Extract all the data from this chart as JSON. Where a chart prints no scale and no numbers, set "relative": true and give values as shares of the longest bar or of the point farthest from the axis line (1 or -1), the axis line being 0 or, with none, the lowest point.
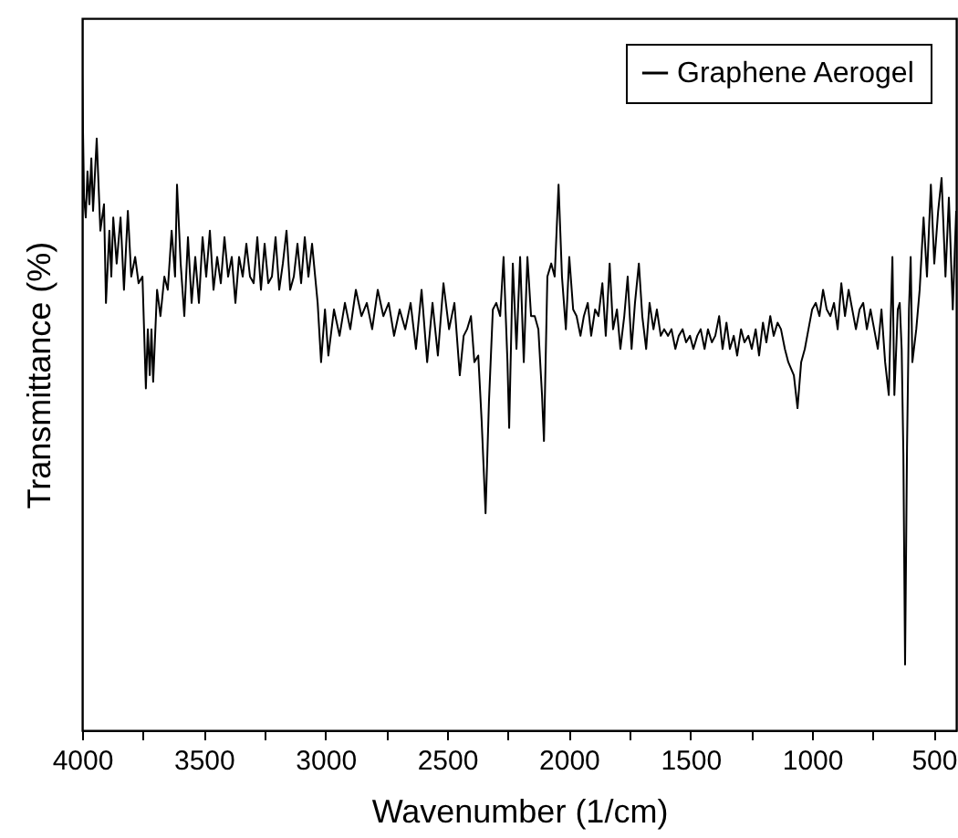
{
  "chart_data": {
    "type": "line",
    "xlabel": "Wavenumber (1/cm)",
    "ylabel": "Transmittance (%)",
    "relative": true,
    "legend": "top right",
    "grid": false,
    "xlim": [
      4000,
      408
    ],
    "xticks": [
      4000,
      {
        "value": 3750,
        "label": null
      },
      3500,
      {
        "value": 3250,
        "label": null
      },
      3000,
      {
        "value": 2750,
        "label": null
      },
      2500,
      {
        "value": 2250,
        "label": null
      },
      2000,
      {
        "value": 1750,
        "label": null
      },
      1500,
      {
        "value": 1250,
        "label": null
      },
      1000,
      {
        "value": 750,
        "label": null
      },
      500
    ],
    "series": [
      {
        "name": "Graphene Aerogel",
        "color": "#000000",
        "x": [
          4000,
          3992,
          3985,
          3978,
          3970,
          3962,
          3955,
          3940,
          3925,
          3910,
          3902,
          3888,
          3880,
          3872,
          3858,
          3842,
          3828,
          3812,
          3798,
          3782,
          3768,
          3752,
          3738,
          3730,
          3722,
          3715,
          3708,
          3692,
          3678,
          3662,
          3648,
          3632,
          3618,
          3610,
          3595,
          3580,
          3565,
          3550,
          3535,
          3520,
          3505,
          3490,
          3475,
          3460,
          3445,
          3430,
          3415,
          3400,
          3385,
          3370,
          3355,
          3340,
          3325,
          3310,
          3295,
          3280,
          3265,
          3250,
          3235,
          3220,
          3205,
          3190,
          3175,
          3160,
          3145,
          3130,
          3115,
          3100,
          3085,
          3070,
          3055,
          3032,
          3018,
          3002,
          2988,
          2965,
          2942,
          2920,
          2898,
          2875,
          2852,
          2830,
          2808,
          2785,
          2762,
          2740,
          2718,
          2695,
          2672,
          2650,
          2628,
          2605,
          2582,
          2560,
          2538,
          2515,
          2492,
          2470,
          2448,
          2432,
          2418,
          2402,
          2388,
          2372,
          2358,
          2342,
          2328,
          2312,
          2298,
          2282,
          2268,
          2252,
          2245,
          2230,
          2215,
          2200,
          2185,
          2170,
          2155,
          2140,
          2125,
          2110,
          2102,
          2088,
          2072,
          2058,
          2042,
          2028,
          2012,
          1998,
          1982,
          1968,
          1952,
          1938,
          1922,
          1908,
          1892,
          1878,
          1862,
          1848,
          1832,
          1818,
          1802,
          1788,
          1772,
          1758,
          1742,
          1728,
          1712,
          1698,
          1682,
          1668,
          1652,
          1638,
          1622,
          1608,
          1592,
          1578,
          1562,
          1548,
          1532,
          1518,
          1502,
          1488,
          1472,
          1458,
          1442,
          1428,
          1412,
          1398,
          1382,
          1368,
          1352,
          1338,
          1322,
          1308,
          1292,
          1278,
          1262,
          1248,
          1232,
          1218,
          1202,
          1188,
          1172,
          1158,
          1142,
          1128,
          1112,
          1098,
          1075,
          1060,
          1045,
          1030,
          1015,
          1000,
          985,
          970,
          955,
          940,
          925,
          910,
          895,
          880,
          865,
          850,
          835,
          820,
          805,
          790,
          775,
          760,
          745,
          730,
          715,
          700,
          685,
          678,
          670,
          662,
          648,
          640,
          632,
          625,
          618,
          610,
          602,
          595,
          588,
          572,
          558,
          542,
          528,
          512,
          498,
          482,
          468,
          452,
          438,
          422,
          408
        ],
        "values": [
          1.0,
          0.81,
          0.78,
          0.85,
          0.8,
          0.87,
          0.79,
          0.9,
          0.76,
          0.8,
          0.65,
          0.76,
          0.69,
          0.78,
          0.71,
          0.78,
          0.67,
          0.79,
          0.69,
          0.72,
          0.68,
          0.69,
          0.52,
          0.61,
          0.54,
          0.61,
          0.53,
          0.67,
          0.63,
          0.69,
          0.67,
          0.76,
          0.69,
          0.83,
          0.71,
          0.63,
          0.75,
          0.65,
          0.72,
          0.65,
          0.75,
          0.69,
          0.76,
          0.67,
          0.72,
          0.68,
          0.75,
          0.69,
          0.72,
          0.65,
          0.72,
          0.69,
          0.74,
          0.69,
          0.68,
          0.75,
          0.67,
          0.74,
          0.68,
          0.69,
          0.75,
          0.67,
          0.71,
          0.76,
          0.67,
          0.69,
          0.74,
          0.68,
          0.75,
          0.69,
          0.74,
          0.65,
          0.56,
          0.64,
          0.57,
          0.64,
          0.6,
          0.65,
          0.61,
          0.67,
          0.63,
          0.65,
          0.61,
          0.67,
          0.63,
          0.65,
          0.6,
          0.64,
          0.61,
          0.65,
          0.58,
          0.67,
          0.56,
          0.65,
          0.57,
          0.68,
          0.61,
          0.65,
          0.54,
          0.6,
          0.61,
          0.63,
          0.56,
          0.57,
          0.47,
          0.33,
          0.5,
          0.64,
          0.65,
          0.63,
          0.72,
          0.56,
          0.46,
          0.71,
          0.58,
          0.72,
          0.56,
          0.72,
          0.63,
          0.63,
          0.61,
          0.51,
          0.44,
          0.69,
          0.71,
          0.69,
          0.83,
          0.69,
          0.61,
          0.72,
          0.64,
          0.63,
          0.6,
          0.63,
          0.65,
          0.6,
          0.64,
          0.63,
          0.68,
          0.6,
          0.71,
          0.61,
          0.64,
          0.58,
          0.63,
          0.69,
          0.58,
          0.65,
          0.71,
          0.63,
          0.58,
          0.65,
          0.61,
          0.64,
          0.6,
          0.61,
          0.6,
          0.61,
          0.58,
          0.6,
          0.61,
          0.59,
          0.6,
          0.58,
          0.6,
          0.61,
          0.58,
          0.61,
          0.59,
          0.6,
          0.63,
          0.58,
          0.62,
          0.58,
          0.6,
          0.57,
          0.61,
          0.59,
          0.6,
          0.58,
          0.61,
          0.57,
          0.62,
          0.59,
          0.63,
          0.6,
          0.62,
          0.61,
          0.58,
          0.56,
          0.54,
          0.49,
          0.56,
          0.58,
          0.61,
          0.64,
          0.65,
          0.63,
          0.67,
          0.64,
          0.63,
          0.65,
          0.61,
          0.68,
          0.63,
          0.67,
          0.64,
          0.61,
          0.64,
          0.65,
          0.61,
          0.64,
          0.61,
          0.58,
          0.64,
          0.56,
          0.51,
          0.61,
          0.72,
          0.51,
          0.64,
          0.65,
          0.58,
          0.42,
          0.1,
          0.43,
          0.64,
          0.72,
          0.56,
          0.61,
          0.67,
          0.78,
          0.69,
          0.83,
          0.71,
          0.79,
          0.84,
          0.69,
          0.81,
          0.64,
          0.79
        ]
      }
    ]
  }
}
